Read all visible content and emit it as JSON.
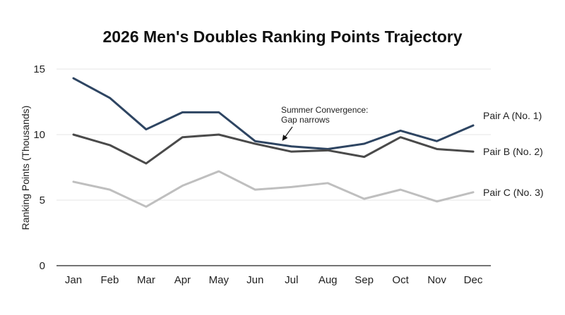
{
  "chart_data": {
    "type": "line",
    "title": "2026 Men's Doubles Ranking Points Trajectory",
    "ylabel": "Ranking Points (Thousands)",
    "xlabel": "",
    "categories": [
      "Jan",
      "Feb",
      "Mar",
      "Apr",
      "May",
      "Jun",
      "Jul",
      "Aug",
      "Sep",
      "Oct",
      "Nov",
      "Dec"
    ],
    "ylim": [
      0,
      15
    ],
    "yticks": [
      0,
      5,
      10,
      15
    ],
    "grid": true,
    "series": [
      {
        "name": "Pair A (No. 1)",
        "color": "#2e4562",
        "values": [
          14.3,
          12.8,
          10.4,
          11.7,
          11.7,
          9.5,
          9.1,
          8.9,
          9.3,
          10.3,
          9.5,
          10.7
        ]
      },
      {
        "name": "Pair B (No. 2)",
        "color": "#4a4a4a",
        "values": [
          10.0,
          9.2,
          7.8,
          9.8,
          10.0,
          9.3,
          8.7,
          8.8,
          8.3,
          9.8,
          8.9,
          8.7
        ]
      },
      {
        "name": "Pair C (No. 3)",
        "color": "#bfbfbf",
        "values": [
          6.4,
          5.8,
          4.5,
          6.1,
          7.2,
          5.8,
          6.0,
          6.3,
          5.1,
          5.8,
          4.9,
          5.6
        ]
      }
    ],
    "annotations": [
      {
        "lines": [
          "Summer Convergence:",
          "Gap narrows"
        ],
        "arrow_to": {
          "x": "Jul",
          "y": 9.5
        }
      }
    ]
  }
}
